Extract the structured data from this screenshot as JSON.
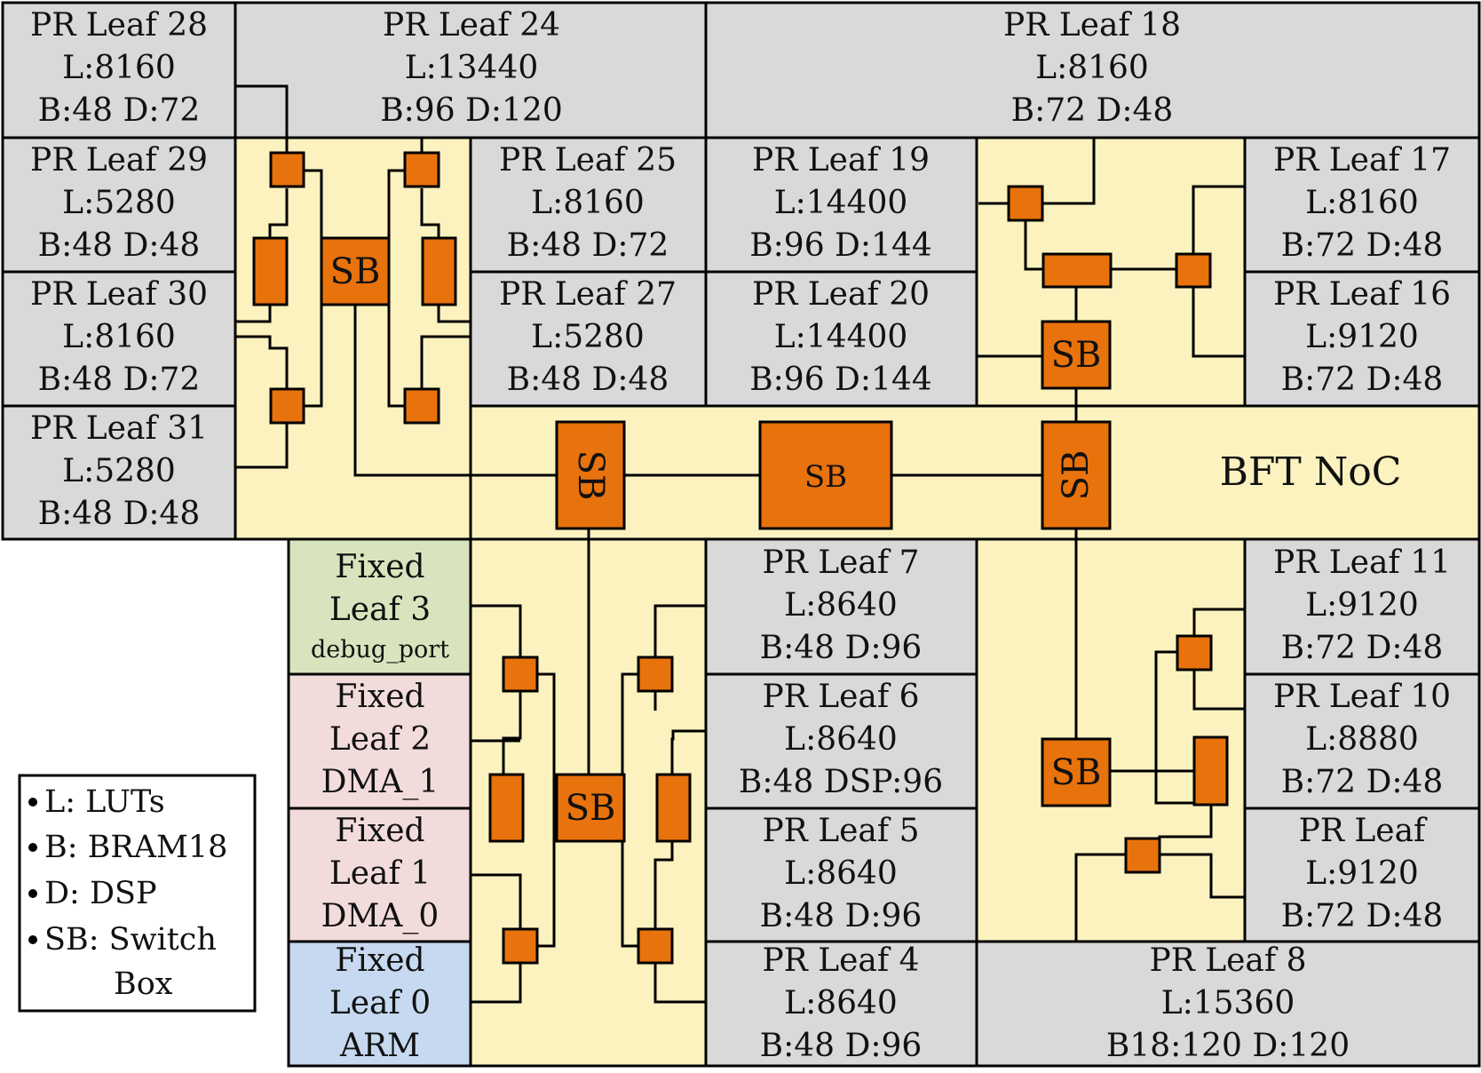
{
  "colors": {
    "pr_leaf": "#d9d9d9",
    "noc": "#fbf2bf",
    "fixed_debug": "#d8e4bd",
    "fixed_dma": "#f2dcdb",
    "fixed_arm": "#c6d9f0",
    "switch": "#e8720c",
    "stroke": "#000000"
  },
  "leaves": {
    "pr28": {
      "title": "PR Leaf 28",
      "luts": "L:8160",
      "bram_dsp": "B:48 D:72"
    },
    "pr24": {
      "title": "PR Leaf 24",
      "luts": "L:13440",
      "bram_dsp": "B:96 D:120"
    },
    "pr18": {
      "title": "PR Leaf 18",
      "luts": "L:8160",
      "bram_dsp": "B:72 D:48"
    },
    "pr29": {
      "title": "PR Leaf 29",
      "luts": "L:5280",
      "bram_dsp": "B:48 D:48"
    },
    "pr25": {
      "title": "PR Leaf 25",
      "luts": "L:8160",
      "bram_dsp": "B:48 D:72"
    },
    "pr19": {
      "title": "PR Leaf 19",
      "luts": "L:14400",
      "bram_dsp": "B:96 D:144"
    },
    "pr17": {
      "title": "PR Leaf 17",
      "luts": "L:8160",
      "bram_dsp": "B:72 D:48"
    },
    "pr30": {
      "title": "PR Leaf 30",
      "luts": "L:8160",
      "bram_dsp": "B:48 D:72"
    },
    "pr27": {
      "title": "PR Leaf 27",
      "luts": "L:5280",
      "bram_dsp": "B:48 D:48"
    },
    "pr20": {
      "title": "PR Leaf 20",
      "luts": "L:14400",
      "bram_dsp": "B:96 D:144"
    },
    "pr16": {
      "title": "PR Leaf 16",
      "luts": "L:9120",
      "bram_dsp": "B:72 D:48"
    },
    "pr31": {
      "title": "PR Leaf 31",
      "luts": "L:5280",
      "bram_dsp": "B:48 D:48"
    },
    "fixed3": {
      "line1": "Fixed",
      "line2": "Leaf 3",
      "line3": "debug_port"
    },
    "fixed2": {
      "line1": "Fixed",
      "line2": "Leaf 2",
      "line3": "DMA_1"
    },
    "fixed1": {
      "line1": "Fixed",
      "line2": "Leaf 1",
      "line3": "DMA_0"
    },
    "fixed0": {
      "line1": "Fixed",
      "line2": "Leaf 0",
      "line3": "ARM"
    },
    "pr7": {
      "title": "PR Leaf 7",
      "luts": "L:8640",
      "bram_dsp": "B:48 D:96"
    },
    "pr6": {
      "title": "PR Leaf 6",
      "luts": "L:8640",
      "bram_dsp": "B:48 DSP:96"
    },
    "pr5": {
      "title": "PR Leaf 5",
      "luts": "L:8640",
      "bram_dsp": "B:48 D:96"
    },
    "pr4": {
      "title": "PR Leaf 4",
      "luts": "L:8640",
      "bram_dsp": "B:48 D:96"
    },
    "pr11": {
      "title": "PR Leaf 11",
      "luts": "L:9120",
      "bram_dsp": "B:72 D:48"
    },
    "pr10": {
      "title": "PR Leaf 10",
      "luts": "L:8880",
      "bram_dsp": "B:72 D:48"
    },
    "pr9": {
      "title": "PR Leaf",
      "luts": "L:9120",
      "bram_dsp": "B:72 D:48"
    },
    "pr8": {
      "title": "PR Leaf 8",
      "luts": "L:15360",
      "bram_dsp": "B18:120 D:120"
    }
  },
  "switch_label": "SB",
  "noc_label": "BFT NoC",
  "legend": {
    "luts": "L: LUTs",
    "bram": "B: BRAM18",
    "dsp": "D: DSP",
    "sb_line1": "SB: Switch",
    "sb_line2": "Box"
  }
}
